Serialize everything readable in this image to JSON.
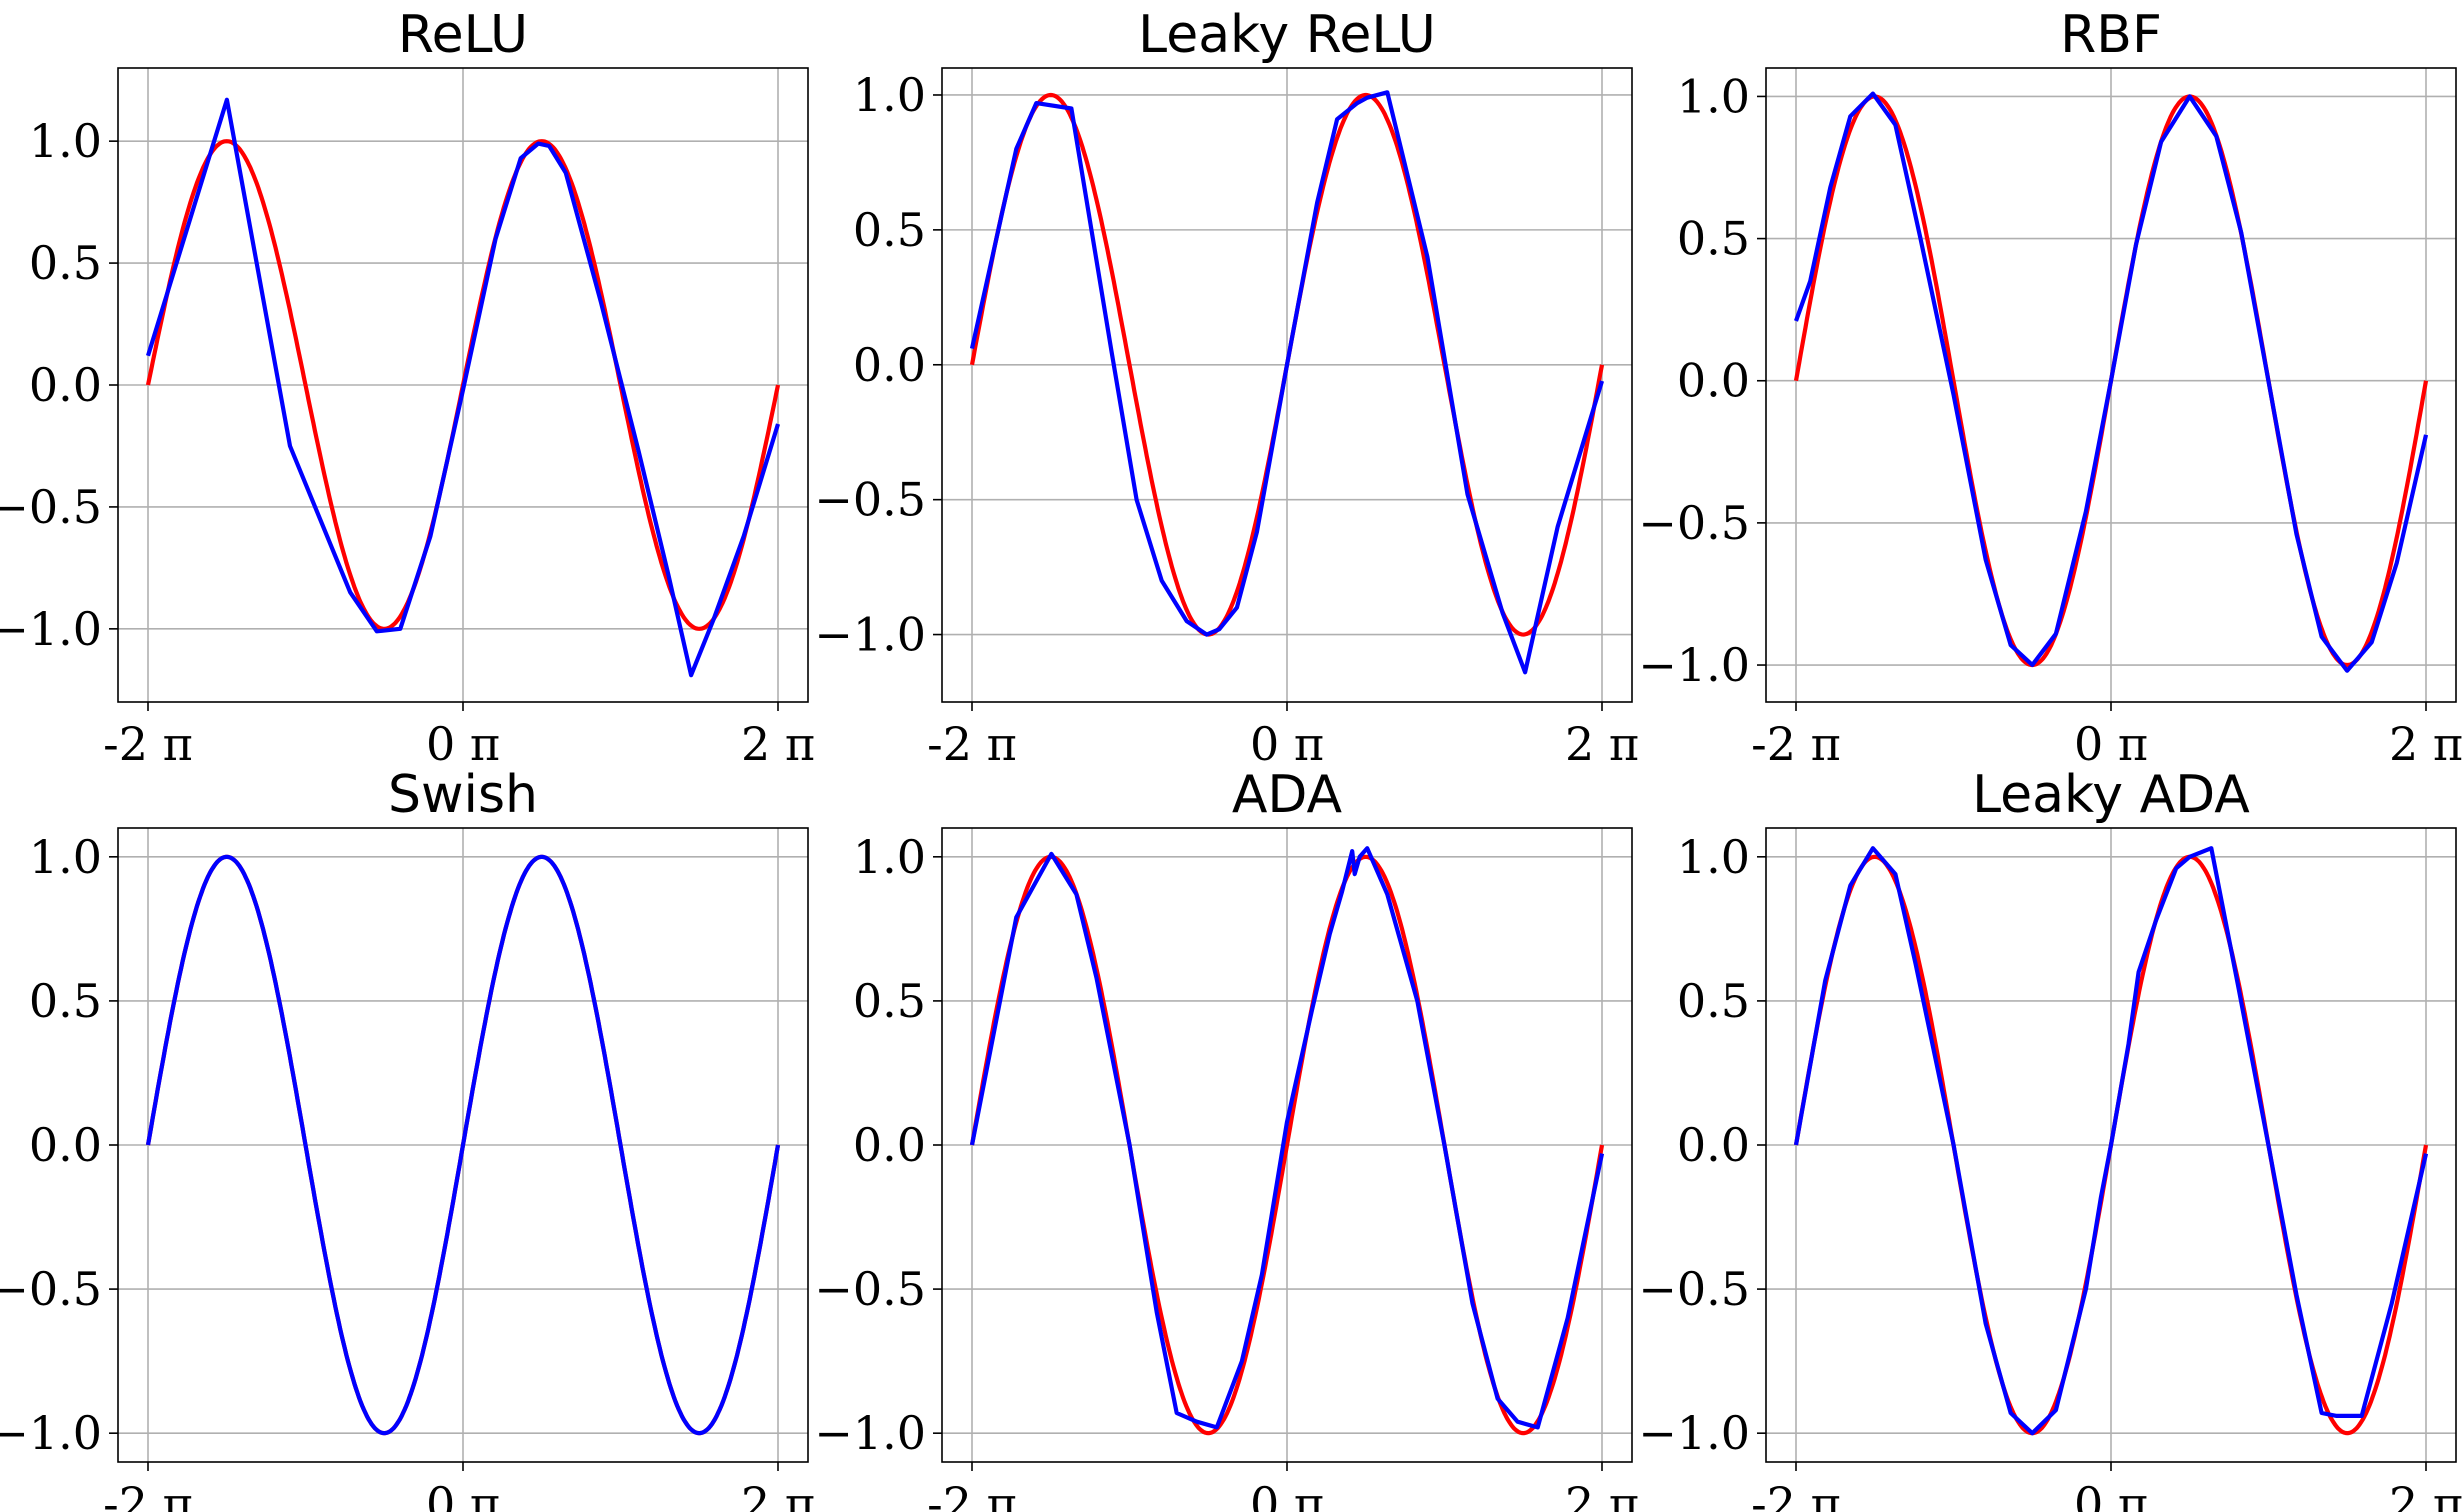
{
  "chart_data": [
    {
      "type": "line",
      "title": "ReLU",
      "x": [
        -6.2832,
        6.2832
      ],
      "xlim": [
        -6.2832,
        6.2832
      ],
      "xticks": [
        "-2 π",
        "0 π",
        "2 π"
      ],
      "ylim": [
        -1.3,
        1.3
      ],
      "yticks": [
        "1.0",
        "0.5",
        "0.0",
        "−0.5",
        "−1.0"
      ],
      "ytick_values": [
        1.0,
        0.5,
        0.0,
        -0.5,
        -1.0
      ],
      "grid": true,
      "colors": {
        "target": "#ff0000",
        "approx": "#0000ff"
      },
      "series": [
        {
          "role": "target",
          "function": "sin(x)"
        },
        {
          "role": "approx",
          "points": [
            [
              -6.283,
              0.12
            ],
            [
              -4.71,
              1.17
            ],
            [
              -3.45,
              -0.25
            ],
            [
              -2.25,
              -0.85
            ],
            [
              -1.72,
              -1.01
            ],
            [
              -1.25,
              -1.0
            ],
            [
              -0.65,
              -0.62
            ],
            [
              0.0,
              -0.02
            ],
            [
              0.65,
              0.6
            ],
            [
              1.15,
              0.93
            ],
            [
              1.5,
              0.99
            ],
            [
              1.72,
              0.98
            ],
            [
              2.05,
              0.87
            ],
            [
              2.75,
              0.34
            ],
            [
              3.5,
              -0.27
            ],
            [
              4.1,
              -0.78
            ],
            [
              4.55,
              -1.19
            ],
            [
              5.0,
              -0.96
            ],
            [
              5.6,
              -0.62
            ],
            [
              6.283,
              -0.16
            ]
          ]
        }
      ]
    },
    {
      "type": "line",
      "title": "Leaky ReLU",
      "x": [
        -6.2832,
        6.2832
      ],
      "xlim": [
        -6.2832,
        6.2832
      ],
      "xticks": [
        "-2 π",
        "0 π",
        "2 π"
      ],
      "ylim": [
        -1.25,
        1.1
      ],
      "yticks": [
        "1.0",
        "0.5",
        "0.0",
        "−0.5",
        "−1.0"
      ],
      "ytick_values": [
        1.0,
        0.5,
        0.0,
        -0.5,
        -1.0
      ],
      "grid": true,
      "colors": {
        "target": "#ff0000",
        "approx": "#0000ff"
      },
      "series": [
        {
          "role": "target",
          "function": "sin(x)"
        },
        {
          "role": "approx",
          "points": [
            [
              -6.283,
              0.06
            ],
            [
              -5.4,
              0.8
            ],
            [
              -5.0,
              0.97
            ],
            [
              -4.3,
              0.95
            ],
            [
              -3.5,
              0.05
            ],
            [
              -3.0,
              -0.5
            ],
            [
              -2.5,
              -0.8
            ],
            [
              -2.0,
              -0.95
            ],
            [
              -1.6,
              -1.0
            ],
            [
              -1.35,
              -0.98
            ],
            [
              -1.0,
              -0.9
            ],
            [
              -0.6,
              -0.62
            ],
            [
              0.0,
              0.0
            ],
            [
              0.6,
              0.6
            ],
            [
              1.0,
              0.91
            ],
            [
              1.4,
              0.97
            ],
            [
              1.6,
              0.99
            ],
            [
              2.0,
              1.01
            ],
            [
              2.8,
              0.4
            ],
            [
              3.6,
              -0.48
            ],
            [
              4.3,
              -0.92
            ],
            [
              4.75,
              -1.14
            ],
            [
              5.4,
              -0.6
            ],
            [
              6.283,
              -0.06
            ]
          ]
        }
      ]
    },
    {
      "type": "line",
      "title": "RBF",
      "x": [
        -6.2832,
        6.2832
      ],
      "xlim": [
        -6.2832,
        6.2832
      ],
      "xticks": [
        "-2 π",
        "0 π",
        "2 π"
      ],
      "ylim": [
        -1.13,
        1.1
      ],
      "yticks": [
        "1.0",
        "0.5",
        "0.0",
        "−0.5",
        "−1.0"
      ],
      "ytick_values": [
        1.0,
        0.5,
        0.0,
        -0.5,
        -1.0
      ],
      "grid": true,
      "colors": {
        "target": "#ff0000",
        "approx": "#0000ff"
      },
      "series": [
        {
          "role": "target",
          "function": "sin(x)"
        },
        {
          "role": "approx",
          "points": [
            [
              -6.283,
              0.21
            ],
            [
              -6.0,
              0.35
            ],
            [
              -5.6,
              0.68
            ],
            [
              -5.2,
              0.93
            ],
            [
              -4.75,
              1.01
            ],
            [
              -4.3,
              0.9
            ],
            [
              -3.8,
              0.5
            ],
            [
              -3.14,
              -0.05
            ],
            [
              -2.5,
              -0.63
            ],
            [
              -2.0,
              -0.93
            ],
            [
              -1.57,
              -1.0
            ],
            [
              -1.1,
              -0.89
            ],
            [
              -0.5,
              -0.46
            ],
            [
              0.0,
              0.0
            ],
            [
              0.5,
              0.48
            ],
            [
              1.0,
              0.84
            ],
            [
              1.57,
              1.0
            ],
            [
              2.1,
              0.86
            ],
            [
              2.6,
              0.52
            ],
            [
              3.14,
              0.0
            ],
            [
              3.7,
              -0.54
            ],
            [
              4.2,
              -0.9
            ],
            [
              4.71,
              -1.02
            ],
            [
              5.2,
              -0.92
            ],
            [
              5.7,
              -0.64
            ],
            [
              6.283,
              -0.19
            ]
          ]
        }
      ]
    },
    {
      "type": "line",
      "title": "Swish",
      "x": [
        -6.2832,
        6.2832
      ],
      "xlim": [
        -6.2832,
        6.2832
      ],
      "xticks": [
        "-2 π",
        "0 π",
        "2 π"
      ],
      "ylim": [
        -1.1,
        1.1
      ],
      "yticks": [
        "1.0",
        "0.5",
        "0.0",
        "−0.5",
        "−1.0"
      ],
      "ytick_values": [
        1.0,
        0.5,
        0.0,
        -0.5,
        -1.0
      ],
      "grid": true,
      "colors": {
        "target": "#ff0000",
        "approx": "#0000ff"
      },
      "series": [
        {
          "role": "target",
          "function": "sin(x)"
        },
        {
          "role": "approx",
          "function": "sin(x)"
        }
      ]
    },
    {
      "type": "line",
      "title": "ADA",
      "x": [
        -6.2832,
        6.2832
      ],
      "xlim": [
        -6.2832,
        6.2832
      ],
      "xticks": [
        "-2 π",
        "0 π",
        "2 π"
      ],
      "ylim": [
        -1.1,
        1.1
      ],
      "yticks": [
        "1.0",
        "0.5",
        "0.0",
        "−0.5",
        "−1.0"
      ],
      "ytick_values": [
        1.0,
        0.5,
        0.0,
        -0.5,
        -1.0
      ],
      "grid": true,
      "colors": {
        "target": "#ff0000",
        "approx": "#0000ff"
      },
      "series": [
        {
          "role": "target",
          "function": "sin(x)"
        },
        {
          "role": "approx",
          "points": [
            [
              -6.283,
              0.0
            ],
            [
              -5.4,
              0.79
            ],
            [
              -4.7,
              1.01
            ],
            [
              -4.2,
              0.87
            ],
            [
              -3.8,
              0.58
            ],
            [
              -3.14,
              0.0
            ],
            [
              -2.6,
              -0.58
            ],
            [
              -2.2,
              -0.93
            ],
            [
              -1.8,
              -0.96
            ],
            [
              -1.4,
              -0.98
            ],
            [
              -0.9,
              -0.75
            ],
            [
              -0.5,
              -0.45
            ],
            [
              0.0,
              0.08
            ],
            [
              0.5,
              0.47
            ],
            [
              0.85,
              0.73
            ],
            [
              1.1,
              0.88
            ],
            [
              1.3,
              1.02
            ],
            [
              1.35,
              0.94
            ],
            [
              1.45,
              1.0
            ],
            [
              1.6,
              1.03
            ],
            [
              2.0,
              0.87
            ],
            [
              2.6,
              0.5
            ],
            [
              3.14,
              0.0
            ],
            [
              3.7,
              -0.55
            ],
            [
              4.2,
              -0.88
            ],
            [
              4.6,
              -0.96
            ],
            [
              5.0,
              -0.98
            ],
            [
              5.6,
              -0.6
            ],
            [
              6.283,
              -0.03
            ]
          ]
        }
      ]
    },
    {
      "type": "line",
      "title": "Leaky ADA",
      "x": [
        -6.2832,
        6.2832
      ],
      "xlim": [
        -6.2832,
        6.2832
      ],
      "xticks": [
        "-2 π",
        "0 π",
        "2 π"
      ],
      "ylim": [
        -1.1,
        1.1
      ],
      "yticks": [
        "1.0",
        "0.5",
        "0.0",
        "−0.5",
        "−1.0"
      ],
      "ytick_values": [
        1.0,
        0.5,
        0.0,
        -0.5,
        -1.0
      ],
      "grid": true,
      "colors": {
        "target": "#ff0000",
        "approx": "#0000ff"
      },
      "series": [
        {
          "role": "target",
          "function": "sin(x)"
        },
        {
          "role": "approx",
          "points": [
            [
              -6.283,
              0.0
            ],
            [
              -5.7,
              0.57
            ],
            [
              -5.2,
              0.9
            ],
            [
              -4.75,
              1.03
            ],
            [
              -4.3,
              0.94
            ],
            [
              -3.9,
              0.63
            ],
            [
              -3.14,
              0.0
            ],
            [
              -2.5,
              -0.62
            ],
            [
              -2.0,
              -0.93
            ],
            [
              -1.57,
              -1.0
            ],
            [
              -1.1,
              -0.92
            ],
            [
              -0.5,
              -0.5
            ],
            [
              -0.2,
              -0.18
            ],
            [
              0.0,
              0.0
            ],
            [
              0.2,
              0.2
            ],
            [
              0.35,
              0.35
            ],
            [
              0.55,
              0.6
            ],
            [
              0.9,
              0.78
            ],
            [
              1.3,
              0.96
            ],
            [
              1.57,
              1.0
            ],
            [
              2.0,
              1.03
            ],
            [
              2.55,
              0.54
            ],
            [
              3.14,
              0.0
            ],
            [
              3.7,
              -0.52
            ],
            [
              4.2,
              -0.93
            ],
            [
              4.5,
              -0.94
            ],
            [
              5.0,
              -0.94
            ],
            [
              5.6,
              -0.55
            ],
            [
              6.283,
              -0.03
            ]
          ]
        }
      ]
    }
  ]
}
